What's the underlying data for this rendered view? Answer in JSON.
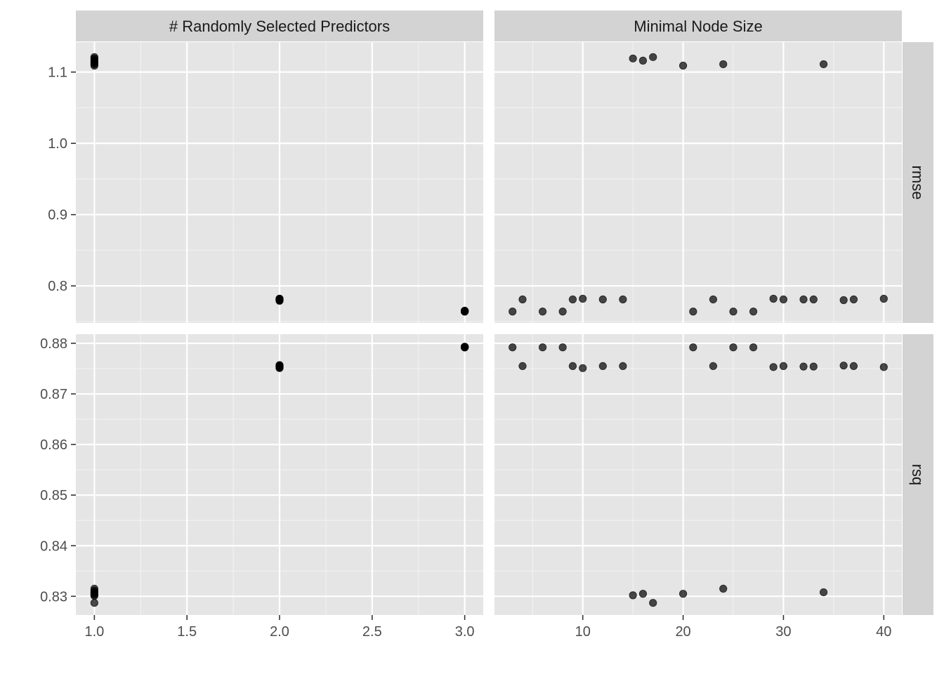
{
  "chart_data": {
    "type": "scatter",
    "facets": {
      "columns": [
        "# Randomly Selected Predictors",
        "Minimal Node Size"
      ],
      "rows": [
        "rmse",
        "rsq"
      ]
    },
    "x_axes": [
      {
        "column": "# Randomly Selected Predictors",
        "xlim": [
          0.9,
          3.1
        ],
        "ticks": [
          1.0,
          1.5,
          2.0,
          2.5,
          3.0
        ],
        "tick_labels": [
          "1.0",
          "1.5",
          "2.0",
          "2.5",
          "3.0"
        ]
      },
      {
        "column": "Minimal Node Size",
        "xlim": [
          1.2,
          41.8
        ],
        "ticks": [
          10,
          20,
          30,
          40
        ],
        "tick_labels": [
          "10",
          "20",
          "30",
          "40"
        ]
      }
    ],
    "y_axes": [
      {
        "row": "rmse",
        "ylim": [
          0.748,
          1.142
        ],
        "ticks": [
          0.8,
          0.9,
          1.0,
          1.1
        ],
        "tick_labels": [
          "0.8",
          "0.9",
          "1.0",
          "1.1"
        ]
      },
      {
        "row": "rsq",
        "ylim": [
          0.8263,
          0.8818
        ],
        "ticks": [
          0.83,
          0.84,
          0.85,
          0.86,
          0.87,
          0.88
        ],
        "tick_labels": [
          "0.83",
          "0.84",
          "0.85",
          "0.86",
          "0.87",
          "0.88"
        ]
      }
    ],
    "panels": [
      {
        "column": "# Randomly Selected Predictors",
        "row": "rmse",
        "points": [
          [
            1,
            1.121
          ],
          [
            1,
            1.117
          ],
          [
            1,
            1.113
          ],
          [
            1,
            1.111
          ],
          [
            1,
            1.109
          ],
          [
            1,
            1.115
          ],
          [
            1,
            1.119
          ],
          [
            2,
            0.782
          ],
          [
            2,
            0.781
          ],
          [
            2,
            0.78
          ],
          [
            2,
            0.779
          ],
          [
            2,
            0.781
          ],
          [
            2,
            0.782
          ],
          [
            2,
            0.78
          ],
          [
            3,
            0.765
          ],
          [
            3,
            0.764
          ],
          [
            3,
            0.765
          ],
          [
            3,
            0.764
          ],
          [
            3,
            0.765
          ],
          [
            3,
            0.764
          ],
          [
            3,
            0.765
          ]
        ]
      },
      {
        "column": "Minimal Node Size",
        "row": "rmse",
        "points": [
          [
            3,
            0.764
          ],
          [
            4,
            0.781
          ],
          [
            6,
            0.764
          ],
          [
            8,
            0.764
          ],
          [
            9,
            0.781
          ],
          [
            10,
            0.782
          ],
          [
            12,
            0.781
          ],
          [
            14,
            0.781
          ],
          [
            15,
            1.119
          ],
          [
            16,
            1.116
          ],
          [
            17,
            1.121
          ],
          [
            20,
            1.109
          ],
          [
            21,
            0.764
          ],
          [
            23,
            0.781
          ],
          [
            24,
            1.111
          ],
          [
            25,
            0.764
          ],
          [
            27,
            0.764
          ],
          [
            29,
            0.782
          ],
          [
            30,
            0.781
          ],
          [
            32,
            0.781
          ],
          [
            33,
            0.781
          ],
          [
            34,
            1.111
          ],
          [
            36,
            0.78
          ],
          [
            37,
            0.781
          ],
          [
            40,
            0.782
          ]
        ]
      },
      {
        "column": "# Randomly Selected Predictors",
        "row": "rsq",
        "points": [
          [
            1,
            0.8315
          ],
          [
            1,
            0.8308
          ],
          [
            1,
            0.8303
          ],
          [
            1,
            0.8301
          ],
          [
            1,
            0.8306
          ],
          [
            1,
            0.8311
          ],
          [
            1,
            0.8287
          ],
          [
            2,
            0.8757
          ],
          [
            2,
            0.8753
          ],
          [
            2,
            0.8755
          ],
          [
            2,
            0.8751
          ],
          [
            2,
            0.8756
          ],
          [
            2,
            0.8752
          ],
          [
            2,
            0.8754
          ],
          [
            3,
            0.8793
          ],
          [
            3,
            0.8792
          ],
          [
            3,
            0.8793
          ],
          [
            3,
            0.8792
          ],
          [
            3,
            0.8793
          ],
          [
            3,
            0.8792
          ],
          [
            3,
            0.8793
          ]
        ]
      },
      {
        "column": "Minimal Node Size",
        "row": "rsq",
        "points": [
          [
            3,
            0.8792
          ],
          [
            4,
            0.8755
          ],
          [
            6,
            0.8792
          ],
          [
            8,
            0.8792
          ],
          [
            9,
            0.8755
          ],
          [
            10,
            0.8751
          ],
          [
            12,
            0.8755
          ],
          [
            14,
            0.8755
          ],
          [
            15,
            0.8302
          ],
          [
            16,
            0.8305
          ],
          [
            17,
            0.8287
          ],
          [
            20,
            0.8305
          ],
          [
            21,
            0.8792
          ],
          [
            23,
            0.8755
          ],
          [
            24,
            0.8315
          ],
          [
            25,
            0.8792
          ],
          [
            27,
            0.8792
          ],
          [
            29,
            0.8753
          ],
          [
            30,
            0.8755
          ],
          [
            32,
            0.8754
          ],
          [
            33,
            0.8754
          ],
          [
            34,
            0.8308
          ],
          [
            36,
            0.8756
          ],
          [
            37,
            0.8755
          ],
          [
            40,
            0.8753
          ]
        ]
      }
    ],
    "point_color": "#000000",
    "panel_background": "#e5e5e5",
    "strip_background": "#d3d3d3",
    "grid": true,
    "title": "",
    "xlabel": "",
    "ylabel": ""
  }
}
